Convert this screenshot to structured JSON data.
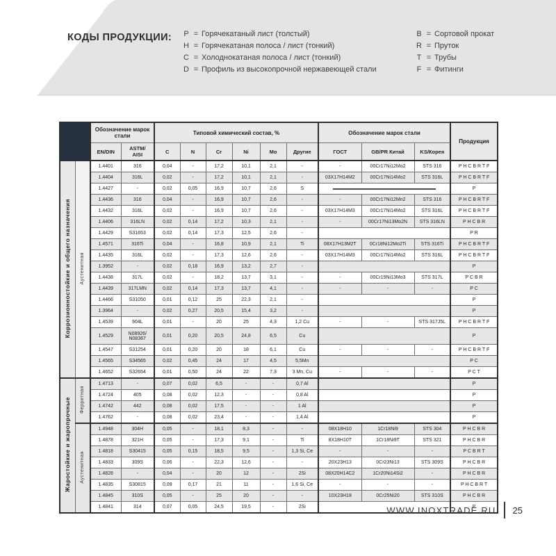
{
  "page": {
    "title": "КОДЫ ПРОДУКЦИИ:",
    "equals_sign": "=",
    "legend_left": [
      {
        "code": "P",
        "desc": "Горячекатаный лист (толстый)"
      },
      {
        "code": "H",
        "desc": "Горячекатаная полоса / лист (тонкий)"
      },
      {
        "code": "C",
        "desc": "Холоднокатаная полоса / лист (тонкий)"
      },
      {
        "code": "D",
        "desc": "Профиль из высокопрочной нержавеющей стали"
      }
    ],
    "legend_right": [
      {
        "code": "B",
        "desc": "Сортовой прокат"
      },
      {
        "code": "R",
        "desc": "Пруток"
      },
      {
        "code": "T",
        "desc": "Трубы"
      },
      {
        "code": "F",
        "desc": "Фитинги"
      }
    ],
    "footer": {
      "url": "WWW.INOXTRADE.RU",
      "page_number": "25"
    }
  },
  "colors": {
    "banner": "#e3e4e5",
    "corner_cell": "#25313f",
    "row_stripe": "#e7e7e7",
    "table_border": "#2d2d2d",
    "footer_bar": "#2c3946"
  },
  "table": {
    "header": {
      "marks_left": "Обозначение марок\nстали",
      "chem": "Типовой химический состав, %",
      "marks_right": "Обозначение марок стали",
      "product": "Продукция",
      "cols": [
        "EN/DIN",
        "ASTM/\nAISI",
        "C",
        "N",
        "Cr",
        "Ni",
        "Mo",
        "Другие",
        "ГОСТ",
        "GB/PR Китай",
        "KS/Корея"
      ]
    },
    "sections": [
      {
        "group": "Коррозионностойкие и общего назначения",
        "phases": [
          {
            "name": "Аустенитная",
            "rows": [
              {
                "en": "1.4401",
                "astm": "316",
                "c": "0,04",
                "n": "-",
                "cr": "17,2",
                "ni": "10,1",
                "mo": "2,1",
                "other": "-",
                "gost": "-",
                "gb": "00Cr17Ni12Mo2",
                "ks": "STS 316",
                "prod": "P H C B R T F",
                "merged": "none"
              },
              {
                "en": "1.4404",
                "astm": "316L",
                "c": "0,02",
                "n": "-",
                "cr": "17,2",
                "ni": "10,1",
                "mo": "2,1",
                "other": "-",
                "gost": "03Х17Н14М2",
                "gb": "00Cr17Ni14Mo2",
                "ks": "STS 316L",
                "prod": "P H C B R T F",
                "merged": "none"
              },
              {
                "en": "1.4427",
                "astm": "-",
                "c": "0,02",
                "n": "0,05",
                "cr": "16,9",
                "ni": "10,7",
                "mo": "2,6",
                "other": "S",
                "prod": "P",
                "merged": "line"
              },
              {
                "en": "1.4436",
                "astm": "316",
                "c": "0,04",
                "n": "-",
                "cr": "16,9",
                "ni": "10,7",
                "mo": "2,6",
                "other": "-",
                "gost": "-",
                "gb": "00Cr17Ni12Mn2",
                "ks": "STS 316",
                "prod": "P H C B R T F",
                "merged": "none"
              },
              {
                "en": "1.4432",
                "astm": "316L",
                "c": "0,02",
                "n": "-",
                "cr": "16,9",
                "ni": "10,7",
                "mo": "2,6",
                "other": "-",
                "gost": "03Х17Н14М3",
                "gb": "00Cr17Ni14Mo2",
                "ks": "STS 316L",
                "prod": "P H C B R T F",
                "merged": "none"
              },
              {
                "en": "1.4406",
                "astm": "316LN",
                "c": "0,02",
                "n": "0,14",
                "cr": "17,2",
                "ni": "10,3",
                "mo": "2,1",
                "other": "-",
                "gost": "-",
                "gb": "00Cr17Ni13Mo2N",
                "ks": "STS 316LN",
                "prod": "P H C B R",
                "merged": "none"
              },
              {
                "en": "1.4429",
                "astm": "S31653",
                "c": "0,02",
                "n": "0,14",
                "cr": "17,3",
                "ni": "12,5",
                "mo": "2,6",
                "other": "-",
                "prod": "P R",
                "merged": "blank"
              },
              {
                "en": "1.4571",
                "astm": "316Ti",
                "c": "0,04",
                "n": "-",
                "cr": "16,8",
                "ni": "10,9",
                "mo": "2,1",
                "other": "Ti",
                "gost": "08Х17Н13М2Т",
                "gb": "0Cr18Ni12Mo2Ti",
                "ks": "STS 316Ti",
                "prod": "P H C B R T F",
                "merged": "none"
              },
              {
                "en": "1.4435",
                "astm": "316L",
                "c": "0,02",
                "n": "-",
                "cr": "17,3",
                "ni": "12,6",
                "mo": "2,6",
                "other": "-",
                "gost": "03Х17Н14М3",
                "gb": "00Cr17Ni14Mo2",
                "ks": "STS 316L",
                "prod": "P H C B R T F",
                "merged": "none"
              },
              {
                "en": "1.3952",
                "astm": "-",
                "c": "0,02",
                "n": "0,18",
                "cr": "16,9",
                "ni": "13,2",
                "mo": "2,7",
                "other": "-",
                "prod": "P",
                "merged": "blank"
              },
              {
                "en": "1.4438",
                "astm": "317L",
                "c": "0,02",
                "n": "-",
                "cr": "18,2",
                "ni": "13,7",
                "mo": "3,1",
                "other": "-",
                "gost": "-",
                "gb": "00Cr19Ni13Mo3",
                "ks": "STS 317L",
                "prod": "P C B R",
                "merged": "none"
              },
              {
                "en": "1.4439",
                "astm": "317LMN",
                "c": "0,02",
                "n": "0,14",
                "cr": "17,3",
                "ni": "13,7",
                "mo": "4,1",
                "other": "-",
                "gost": "-",
                "gb": "-",
                "ks": "-",
                "prod": "P C",
                "merged": "none"
              },
              {
                "en": "1.4466",
                "astm": "S31050",
                "c": "0,01",
                "n": "0,12",
                "cr": "25",
                "ni": "22,3",
                "mo": "2,1",
                "other": "-",
                "prod": "P",
                "merged": "blank"
              },
              {
                "en": "1.3964",
                "astm": "-",
                "c": "0,02",
                "n": "0,27",
                "cr": "20,5",
                "ni": "15,4",
                "mo": "3,2",
                "other": "-",
                "prod": "P",
                "merged": "blank"
              },
              {
                "en": "1.4539",
                "astm": "904L",
                "c": "0,01",
                "n": "-",
                "cr": "20",
                "ni": "25",
                "mo": "4,3",
                "other": "1,2 Cu",
                "gost": "-",
                "gb": "-",
                "ks": "STS 317J5L",
                "prod": "P H C B R T F",
                "merged": "none"
              },
              {
                "en": "1.4529",
                "astm": "N08926/\nN08367",
                "c": "0,01",
                "n": "0,20",
                "cr": "20,5",
                "ni": "24,8",
                "mo": "6,5",
                "other": "Cu",
                "prod": "P",
                "merged": "blank",
                "tall": true
              },
              {
                "en": "1.4547",
                "astm": "S31254",
                "c": "0,01",
                "n": "0,20",
                "cr": "20",
                "ni": "18",
                "mo": "6,1",
                "other": "Cu",
                "gost": "-",
                "gb": "-",
                "ks": "-",
                "prod": "P H C B R T F",
                "merged": "none"
              },
              {
                "en": "1.4565",
                "astm": "S34565",
                "c": "0,02",
                "n": "0,45",
                "cr": "24",
                "ni": "17",
                "mo": "4,5",
                "other": "5,5Mn",
                "prod": "P C",
                "merged": "blank"
              },
              {
                "en": "1.4652",
                "astm": "S32654",
                "c": "0,01",
                "n": "0,50",
                "cr": "24",
                "ni": "22",
                "mo": "7,3",
                "other": "3 Mn, Cu",
                "gost": "-",
                "gb": "-",
                "ks": "-",
                "prod": "P C T",
                "merged": "none"
              }
            ]
          }
        ]
      },
      {
        "group": "Жаростойкие и жаропрочные",
        "phases": [
          {
            "name": "Ферритная",
            "rows": [
              {
                "en": "1.4713",
                "astm": "-",
                "c": "0,07",
                "n": "0,02",
                "cr": "6,5",
                "ni": "-",
                "mo": "-",
                "other": "0,7 Al",
                "prod": "P",
                "merged": "blank"
              },
              {
                "en": "1.4724",
                "astm": "405",
                "c": "0,08",
                "n": "0,02",
                "cr": "12,3",
                "ni": "-",
                "mo": "-",
                "other": "0,8 Al",
                "prod": "P",
                "merged": "blank"
              },
              {
                "en": "1.4742",
                "astm": "442",
                "c": "0,08",
                "n": "0,02",
                "cr": "17,5",
                "ni": "-",
                "mo": "-",
                "other": "1 Al",
                "prod": "P",
                "merged": "blank"
              },
              {
                "en": "1.4762",
                "astm": "-",
                "c": "0,08",
                "n": "0,02",
                "cr": "23,4",
                "ni": "-",
                "mo": "-",
                "other": "1,4 Al",
                "prod": "P",
                "merged": "blank"
              }
            ]
          },
          {
            "name": "Аустенитная",
            "rows": [
              {
                "en": "1.4948",
                "astm": "304H",
                "c": "0,05",
                "n": "-",
                "cr": "18,1",
                "ni": "8,3",
                "mo": "-",
                "other": "-",
                "gost": "08Х18Н10",
                "gb": "1Cr18Ni9",
                "ks": "STS 304",
                "prod": "P H C B R",
                "merged": "none"
              },
              {
                "en": "1.4878",
                "astm": "321H",
                "c": "0,05",
                "n": "-",
                "cr": "17,3",
                "ni": "9,1",
                "mo": "-",
                "other": "Ti",
                "gost": "8Х18Н10Т",
                "gb": "1Cr18Ni9Т",
                "ks": "STS 321",
                "prod": "P H C B R",
                "merged": "none"
              },
              {
                "en": "1.4818",
                "astm": "S30415",
                "c": "0,05",
                "n": "0,15",
                "cr": "18,5",
                "ni": "9,5",
                "mo": "-",
                "other": "1,3 Si, Ce",
                "gost": "-",
                "gb": "-",
                "ks": "-",
                "prod": "P C B R T",
                "merged": "none"
              },
              {
                "en": "1.4833",
                "astm": "309S",
                "c": "0,06",
                "n": "-",
                "cr": "22,3",
                "ni": "12,6",
                "mo": "-",
                "other": "-",
                "gost": "20Х23Н13",
                "gb": "0Cr23Ni13",
                "ks": "STS 309S",
                "prod": "P H C B R",
                "merged": "none"
              },
              {
                "en": "1.4828",
                "astm": "-",
                "c": "0,04",
                "n": "-",
                "cr": "20",
                "ni": "12",
                "mo": "-",
                "other": "2Si",
                "gost": "08Х20Н14С2",
                "gb": "1Cr20Ni14Si2",
                "ks": "-",
                "prod": "P H C B R",
                "merged": "none"
              },
              {
                "en": "1.4835",
                "astm": "S30815",
                "c": "0,09",
                "n": "0,17",
                "cr": "21",
                "ni": "11",
                "mo": "-",
                "other": "1,6 Si, Ce",
                "gost": "-",
                "gb": "-",
                "ks": "-",
                "prod": "P H C B R T",
                "merged": "none"
              },
              {
                "en": "1.4845",
                "astm": "310S",
                "c": "0,05",
                "n": "-",
                "cr": "25",
                "ni": "20",
                "mo": "-",
                "other": "-",
                "gost": "10Х23Н18",
                "gb": "0Cr25Ni20",
                "ks": "STS 310S",
                "prod": "P H C B R",
                "merged": "none"
              },
              {
                "en": "1.4841",
                "astm": "314",
                "c": "0,07",
                "n": "0,05",
                "cr": "24,5",
                "ni": "19,5",
                "mo": "-",
                "other": "2Si",
                "prod": "P",
                "merged": "blank"
              }
            ]
          }
        ]
      }
    ]
  }
}
